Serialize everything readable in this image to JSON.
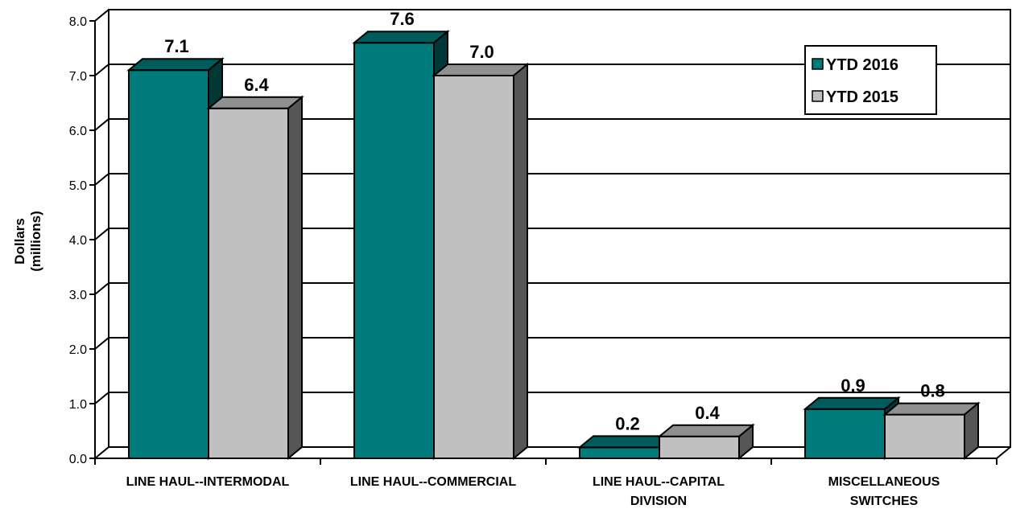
{
  "chart_data": {
    "type": "bar",
    "title": "",
    "ylabel": [
      "Dollars",
      "(millions)"
    ],
    "ylim": [
      0,
      8
    ],
    "ytick_step": 1,
    "yticks": [
      "0.0",
      "1.0",
      "2.0",
      "3.0",
      "4.0",
      "5.0",
      "6.0",
      "7.0",
      "8.0"
    ],
    "categories": [
      [
        "LINE HAUL--INTERMODAL"
      ],
      [
        "LINE HAUL--COMMERCIAL"
      ],
      [
        "LINE HAUL--CAPITAL",
        "DIVISION"
      ],
      [
        "MISCELLANEOUS",
        "SWITCHES"
      ]
    ],
    "series": [
      {
        "name": "YTD 2016",
        "values": [
          7.1,
          7.6,
          0.2,
          0.9
        ],
        "labels": [
          "7.1",
          "7.6",
          "0.2",
          "0.9"
        ],
        "color": "#007b7b"
      },
      {
        "name": "YTD 2015",
        "values": [
          6.4,
          7.0,
          0.4,
          0.8
        ],
        "labels": [
          "6.4",
          "7.0",
          "0.4",
          "0.8"
        ],
        "color": "#c0c0c0"
      }
    ],
    "grid": true,
    "legend_position": "top-right"
  }
}
